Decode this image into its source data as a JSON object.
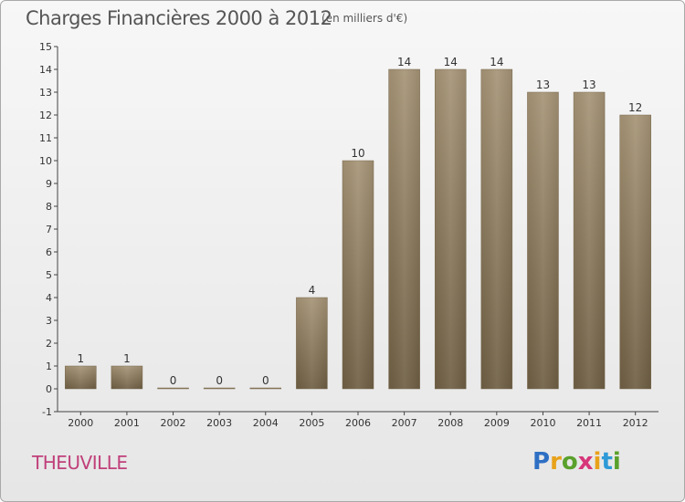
{
  "title": "Charges Financières 2000 à 2012",
  "subtitle": "(en milliers d'€)",
  "commune": "THEUVILLE",
  "logo": {
    "letters": [
      {
        "char": "P",
        "color": "#2e6fc4"
      },
      {
        "char": "r",
        "color": "#e8a21a"
      },
      {
        "char": "o",
        "color": "#5aa02c"
      },
      {
        "char": "x",
        "color": "#d7357a"
      },
      {
        "char": "i",
        "color": "#e8a21a"
      },
      {
        "char": "t",
        "color": "#2e9ad7"
      },
      {
        "char": "i",
        "color": "#5aa02c"
      }
    ]
  },
  "chart_data": {
    "type": "bar",
    "title": "Charges Financières 2000 à 2012",
    "subtitle": "(en milliers d'€)",
    "categories": [
      "2000",
      "2001",
      "2002",
      "2003",
      "2004",
      "2005",
      "2006",
      "2007",
      "2008",
      "2009",
      "2010",
      "2011",
      "2012"
    ],
    "values": [
      1,
      1,
      0,
      0,
      0,
      4,
      10,
      14,
      14,
      14,
      13,
      13,
      12
    ],
    "data_labels": [
      "1",
      "1",
      "0",
      "0",
      "0",
      "4",
      "10",
      "14",
      "14",
      "14",
      "13",
      "13",
      "12"
    ],
    "ylim": [
      -1,
      15
    ],
    "yticks": [
      -1,
      0,
      1,
      2,
      3,
      4,
      5,
      6,
      7,
      8,
      9,
      10,
      11,
      12,
      13,
      14,
      15
    ],
    "grid": false,
    "bar_color": "#8c7a5b"
  }
}
